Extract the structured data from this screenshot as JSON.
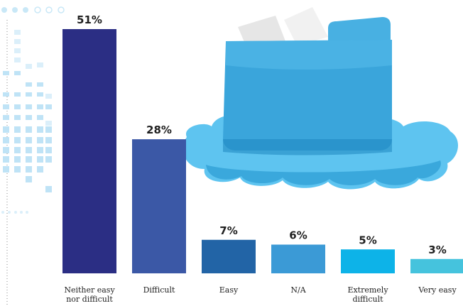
{
  "chart_data": {
    "type": "bar",
    "categories": [
      "Neither easy nor difficult",
      "Difficult",
      "Easy",
      "N/A",
      "Extremely difficult",
      "Very easy"
    ],
    "category_lines": [
      [
        "Neither easy",
        "nor difficult"
      ],
      [
        "Difficult"
      ],
      [
        "Easy"
      ],
      [
        "N/A"
      ],
      [
        "Extremely",
        "difficult"
      ],
      [
        "Very easy"
      ]
    ],
    "values": [
      51,
      28,
      7,
      6,
      5,
      3
    ],
    "value_labels": [
      "51%",
      "28%",
      "7%",
      "6%",
      "5%",
      "3%"
    ],
    "colors": [
      "#2b2e84",
      "#3b58a6",
      "#2264a6",
      "#3b9ad6",
      "#0db3e8",
      "#45c3dd"
    ],
    "ylim": [
      0,
      51
    ],
    "grid": false
  },
  "decoration": {
    "illustration": "folder-on-cloud",
    "accent_color": "#39a8dd"
  }
}
